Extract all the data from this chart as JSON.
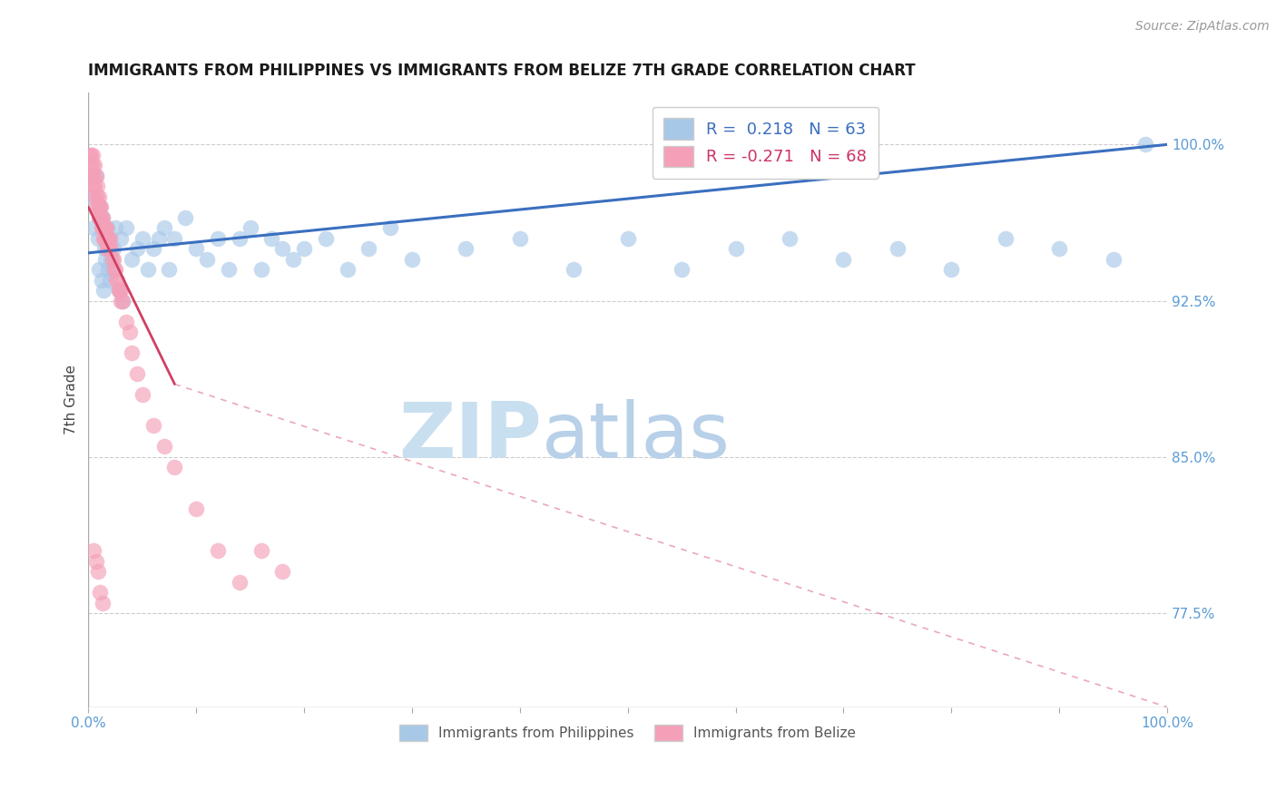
{
  "title": "IMMIGRANTS FROM PHILIPPINES VS IMMIGRANTS FROM BELIZE 7TH GRADE CORRELATION CHART",
  "source": "Source: ZipAtlas.com",
  "ylabel": "7th Grade",
  "yticks_right": [
    100.0,
    92.5,
    85.0,
    77.5
  ],
  "ytick_labels_right": [
    "100.0%",
    "92.5%",
    "85.0%",
    "77.5%"
  ],
  "legend_r1": "R =  0.218",
  "legend_n1": "N = 63",
  "legend_r2": "R = -0.271",
  "legend_n2": "N = 68",
  "color_blue": "#a8c8e8",
  "color_pink": "#f4a0b8",
  "color_line_blue": "#3a6fbf",
  "color_line_pink": "#d04060",
  "color_axis_label": "#5b9bd5",
  "watermark_color": "#d8eaf6",
  "background_color": "#ffffff",
  "xmin": 0.0,
  "xmax": 100.0,
  "ymin": 73.0,
  "ymax": 102.5,
  "philippines_x": [
    0.3,
    0.5,
    0.7,
    0.9,
    1.1,
    1.3,
    1.5,
    1.7,
    1.9,
    2.1,
    2.3,
    2.5,
    3.0,
    3.5,
    4.0,
    4.5,
    5.0,
    5.5,
    6.0,
    6.5,
    7.0,
    7.5,
    8.0,
    9.0,
    10.0,
    11.0,
    12.0,
    13.0,
    14.0,
    15.0,
    16.0,
    17.0,
    18.0,
    19.0,
    20.0,
    22.0,
    24.0,
    26.0,
    28.0,
    30.0,
    35.0,
    40.0,
    45.0,
    50.0,
    55.0,
    60.0,
    65.0,
    70.0,
    75.0,
    80.0,
    85.0,
    90.0,
    95.0,
    98.0,
    1.0,
    1.2,
    1.4,
    1.6,
    1.8,
    2.0,
    2.2,
    2.8,
    3.2
  ],
  "philippines_y": [
    97.5,
    96.0,
    98.5,
    95.5,
    97.0,
    96.5,
    95.0,
    96.0,
    95.5,
    94.5,
    95.0,
    96.0,
    95.5,
    96.0,
    94.5,
    95.0,
    95.5,
    94.0,
    95.0,
    95.5,
    96.0,
    94.0,
    95.5,
    96.5,
    95.0,
    94.5,
    95.5,
    94.0,
    95.5,
    96.0,
    94.0,
    95.5,
    95.0,
    94.5,
    95.0,
    95.5,
    94.0,
    95.0,
    96.0,
    94.5,
    95.0,
    95.5,
    94.0,
    95.5,
    94.0,
    95.0,
    95.5,
    94.5,
    95.0,
    94.0,
    95.5,
    95.0,
    94.5,
    100.0,
    94.0,
    93.5,
    93.0,
    94.5,
    94.0,
    93.5,
    94.0,
    93.0,
    92.5
  ],
  "belize_x": [
    0.15,
    0.2,
    0.25,
    0.3,
    0.35,
    0.4,
    0.45,
    0.5,
    0.55,
    0.6,
    0.65,
    0.7,
    0.75,
    0.8,
    0.85,
    0.9,
    0.95,
    1.0,
    1.05,
    1.1,
    1.15,
    1.2,
    1.25,
    1.3,
    1.35,
    1.4,
    1.45,
    1.5,
    1.55,
    1.6,
    1.65,
    1.7,
    1.75,
    1.8,
    1.85,
    1.9,
    1.95,
    2.0,
    2.1,
    2.2,
    2.3,
    2.4,
    2.5,
    2.6,
    2.7,
    2.8,
    2.9,
    3.0,
    3.5,
    4.0,
    4.5,
    5.0,
    6.0,
    7.0,
    8.0,
    10.0,
    12.0,
    14.0,
    16.0,
    18.0,
    3.0,
    3.2,
    3.8,
    0.5,
    0.7,
    0.9,
    1.1,
    1.3
  ],
  "belize_y": [
    99.5,
    99.0,
    99.5,
    98.5,
    99.0,
    99.5,
    98.0,
    98.5,
    98.0,
    99.0,
    97.5,
    98.5,
    97.0,
    98.0,
    97.5,
    97.0,
    97.5,
    96.5,
    97.0,
    96.5,
    97.0,
    96.0,
    96.5,
    96.0,
    96.5,
    95.5,
    96.0,
    95.5,
    96.0,
    95.5,
    96.0,
    95.0,
    95.5,
    95.0,
    95.5,
    95.0,
    95.5,
    95.0,
    95.0,
    94.5,
    94.5,
    94.0,
    94.0,
    93.5,
    93.5,
    93.0,
    93.0,
    92.5,
    91.5,
    90.0,
    89.0,
    88.0,
    86.5,
    85.5,
    84.5,
    82.5,
    80.5,
    79.0,
    80.5,
    79.5,
    93.0,
    92.5,
    91.0,
    80.5,
    80.0,
    79.5,
    78.5,
    78.0
  ]
}
